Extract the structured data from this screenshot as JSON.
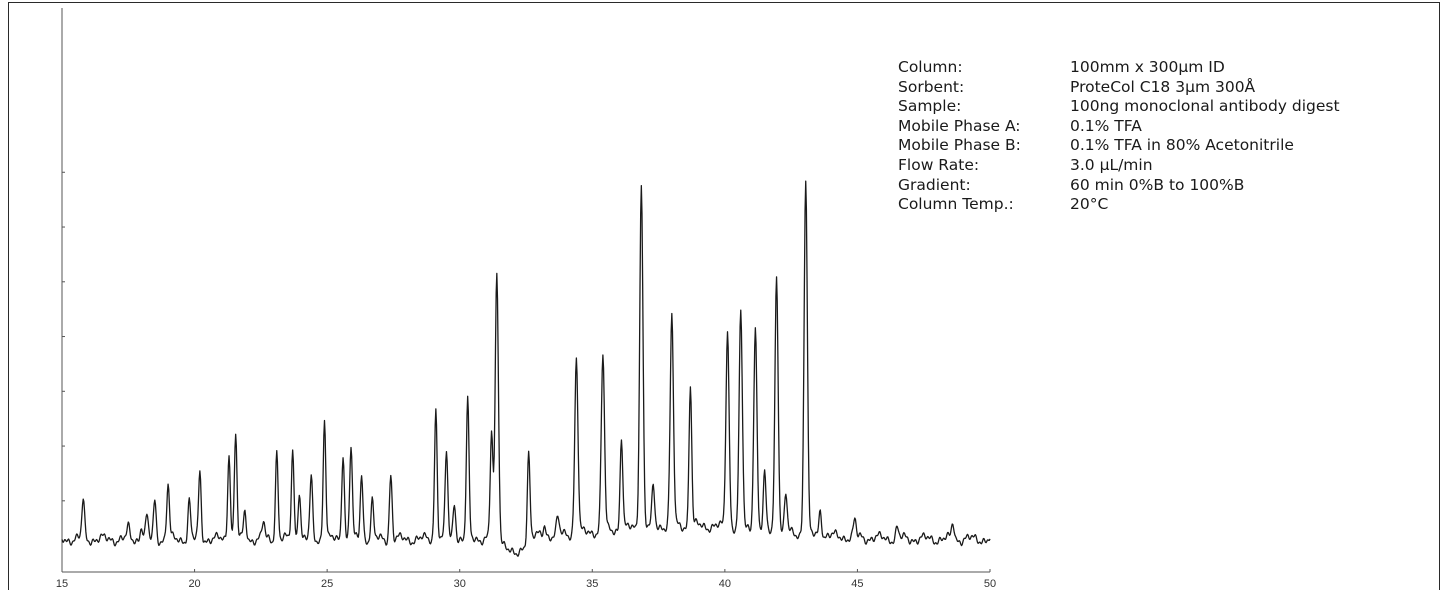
{
  "chart_data": {
    "type": "line",
    "title": "",
    "xlabel": "",
    "ylabel": "",
    "xlim": [
      15,
      50
    ],
    "ylim": [
      -0.3,
      10
    ],
    "x_ticks": [
      15,
      20,
      25,
      30,
      35,
      40,
      45,
      50
    ],
    "x_tick_labels": [
      "15",
      "20",
      "25",
      "30",
      "35",
      "40",
      "45",
      "50"
    ],
    "y_tick_values": [
      1,
      2,
      3,
      4,
      5,
      6,
      7
    ],
    "line_color": "#1a1a1a",
    "baseline": 0.3,
    "peaks": [
      {
        "x": 15.8,
        "y": 1.0
      },
      {
        "x": 17.5,
        "y": 0.5
      },
      {
        "x": 18.0,
        "y": 0.55
      },
      {
        "x": 18.2,
        "y": 0.7
      },
      {
        "x": 18.5,
        "y": 1.0
      },
      {
        "x": 19.0,
        "y": 1.3
      },
      {
        "x": 19.8,
        "y": 1.0
      },
      {
        "x": 20.2,
        "y": 1.5
      },
      {
        "x": 21.3,
        "y": 1.9
      },
      {
        "x": 21.55,
        "y": 2.2
      },
      {
        "x": 21.9,
        "y": 0.8
      },
      {
        "x": 22.6,
        "y": 0.6
      },
      {
        "x": 23.1,
        "y": 1.9
      },
      {
        "x": 23.7,
        "y": 1.9
      },
      {
        "x": 23.95,
        "y": 1.2
      },
      {
        "x": 24.4,
        "y": 1.4
      },
      {
        "x": 24.9,
        "y": 2.5
      },
      {
        "x": 25.6,
        "y": 1.9
      },
      {
        "x": 25.9,
        "y": 2.0
      },
      {
        "x": 26.3,
        "y": 1.5
      },
      {
        "x": 26.7,
        "y": 1.0
      },
      {
        "x": 27.4,
        "y": 1.5
      },
      {
        "x": 29.1,
        "y": 2.7
      },
      {
        "x": 29.5,
        "y": 1.9
      },
      {
        "x": 29.8,
        "y": 1.0
      },
      {
        "x": 30.3,
        "y": 2.8
      },
      {
        "x": 31.2,
        "y": 2.2
      },
      {
        "x": 31.4,
        "y": 5.1
      },
      {
        "x": 32.6,
        "y": 1.9
      },
      {
        "x": 33.2,
        "y": 0.5
      },
      {
        "x": 33.7,
        "y": 0.6
      },
      {
        "x": 34.4,
        "y": 3.5
      },
      {
        "x": 35.4,
        "y": 3.5
      },
      {
        "x": 36.1,
        "y": 2.0
      },
      {
        "x": 36.85,
        "y": 6.6
      },
      {
        "x": 37.3,
        "y": 1.0
      },
      {
        "x": 38.0,
        "y": 4.1
      },
      {
        "x": 38.7,
        "y": 2.9
      },
      {
        "x": 40.1,
        "y": 3.9
      },
      {
        "x": 40.6,
        "y": 4.2
      },
      {
        "x": 41.15,
        "y": 4.0
      },
      {
        "x": 41.5,
        "y": 1.3
      },
      {
        "x": 41.95,
        "y": 5.0
      },
      {
        "x": 42.3,
        "y": 1.0
      },
      {
        "x": 43.05,
        "y": 6.8
      },
      {
        "x": 43.6,
        "y": 0.8
      },
      {
        "x": 44.9,
        "y": 0.6
      },
      {
        "x": 46.5,
        "y": 0.5
      },
      {
        "x": 48.6,
        "y": 0.6
      }
    ]
  },
  "params": [
    {
      "label": "Column:",
      "value": "100mm x 300µm ID"
    },
    {
      "label": "Sorbent:",
      "value": "ProteCol C18 3µm 300Å"
    },
    {
      "label": "Sample:",
      "value": "100ng monoclonal antibody digest"
    },
    {
      "label": "Mobile Phase A:",
      "value": "0.1% TFA"
    },
    {
      "label": "Mobile Phase B:",
      "value": "0.1% TFA in 80% Acetonitrile"
    },
    {
      "label": "Flow Rate:",
      "value": "3.0 µL/min"
    },
    {
      "label": "Gradient:",
      "value": "60 min 0%B to 100%B"
    },
    {
      "label": "Column Temp.:",
      "value": "20°C"
    }
  ]
}
